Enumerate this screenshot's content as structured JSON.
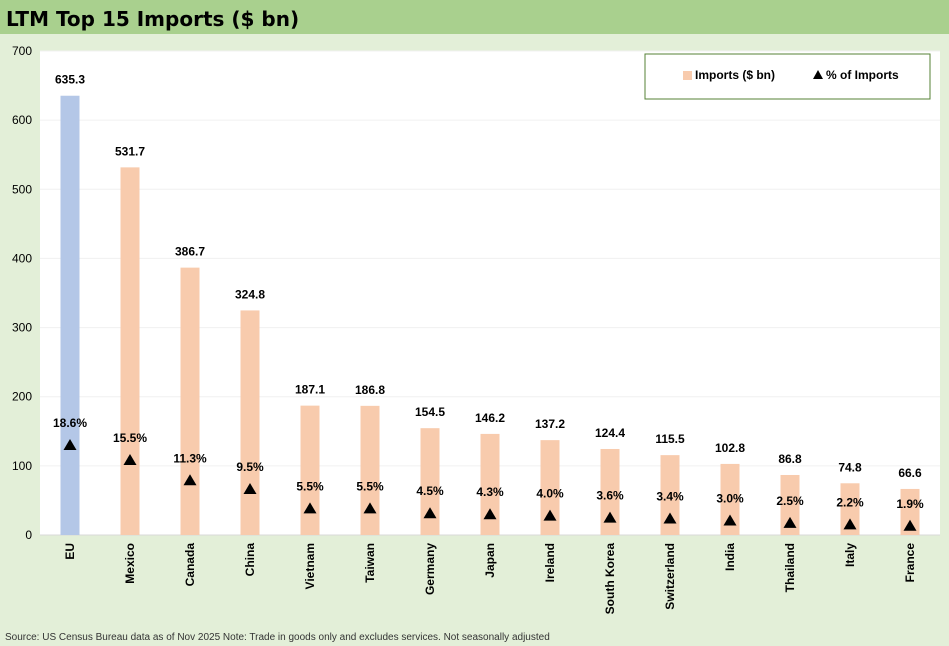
{
  "header": {
    "title": "LTM Top 15 Imports ($ bn)"
  },
  "footer": {
    "source_note": "Source: US Census Bureau data as of Nov 2025 Note: Trade in goods only and excludes services. Not seasonally adjusted"
  },
  "chart_data": {
    "type": "bar",
    "title": "LTM Top 15 Imports ($ bn)",
    "categories": [
      "EU",
      "Mexico",
      "Canada",
      "China",
      "Vietnam",
      "Taiwan",
      "Germany",
      "Japan",
      "Ireland",
      "South Korea",
      "Switzerland",
      "India",
      "Thailand",
      "Italy",
      "France"
    ],
    "series": [
      {
        "name": "Imports ($ bn)",
        "type": "bar",
        "values": [
          635.3,
          531.7,
          386.7,
          324.8,
          187.1,
          186.8,
          154.5,
          146.2,
          137.2,
          124.4,
          115.5,
          102.8,
          86.8,
          74.8,
          66.6
        ],
        "labels": [
          "635.3",
          "531.7",
          "386.7",
          "324.8",
          "187.1",
          "186.8",
          "154.5",
          "146.2",
          "137.2",
          "124.4",
          "115.5",
          "102.8",
          "86.8",
          "74.8",
          "66.6"
        ]
      },
      {
        "name": "% of Imports",
        "type": "marker",
        "values": [
          18.6,
          15.5,
          11.3,
          9.5,
          5.5,
          5.5,
          4.5,
          4.3,
          4.0,
          3.6,
          3.4,
          3.0,
          2.5,
          2.2,
          1.9
        ],
        "labels": [
          "18.6%",
          "15.5%",
          "11.3%",
          "9.5%",
          "5.5%",
          "5.5%",
          "4.5%",
          "4.3%",
          "4.0%",
          "3.6%",
          "3.4%",
          "3.0%",
          "2.5%",
          "2.2%",
          "1.9%"
        ]
      }
    ],
    "ylim": [
      0,
      700
    ],
    "yticks": [
      0,
      100,
      200,
      300,
      400,
      500,
      600,
      700
    ],
    "xlabel": "",
    "ylabel": "",
    "legend_position": "top-right",
    "colors": {
      "highlight_bar": "#b4c7e7",
      "bar": "#f8cbad",
      "marker": "#000000",
      "plot_bg": "#ffffff",
      "grid": "#f0f0f0",
      "legend_border": "#548235"
    }
  }
}
